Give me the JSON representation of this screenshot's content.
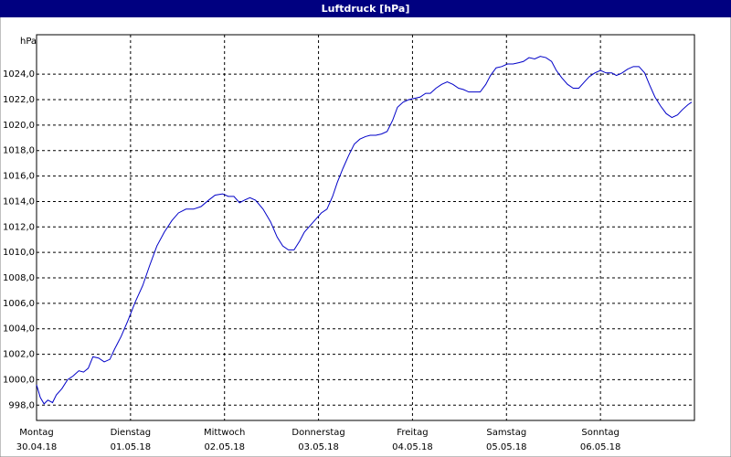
{
  "chart_data": {
    "type": "line",
    "title": "Luftdruck [hPa]",
    "y_unit": "hPa",
    "xlim": [
      0,
      7
    ],
    "xticks": [
      {
        "value": 0,
        "label": "Montag",
        "date": "30.04.18"
      },
      {
        "value": 1,
        "label": "Dienstag",
        "date": "01.05.18"
      },
      {
        "value": 2,
        "label": "Mittwoch",
        "date": "02.05.18"
      },
      {
        "value": 3,
        "label": "Donnerstag",
        "date": "03.05.18"
      },
      {
        "value": 4,
        "label": "Freitag",
        "date": "04.05.18"
      },
      {
        "value": 5,
        "label": "Samstag",
        "date": "05.05.18"
      },
      {
        "value": 6,
        "label": "Sonntag",
        "date": "06.05.18"
      }
    ],
    "ylim": [
      996.8,
      1027.1
    ],
    "yticks": [
      {
        "value": 998,
        "label": "998,0"
      },
      {
        "value": 1000,
        "label": "1000,0"
      },
      {
        "value": 1002,
        "label": "1002,0"
      },
      {
        "value": 1004,
        "label": "1004,0"
      },
      {
        "value": 1006,
        "label": "1006,0"
      },
      {
        "value": 1008,
        "label": "1008,0"
      },
      {
        "value": 1010,
        "label": "1010,0"
      },
      {
        "value": 1012,
        "label": "1012,0"
      },
      {
        "value": 1014,
        "label": "1014,0"
      },
      {
        "value": 1016,
        "label": "1016,0"
      },
      {
        "value": 1018,
        "label": "1018,0"
      },
      {
        "value": 1020,
        "label": "1020,0"
      },
      {
        "value": 1022,
        "label": "1022,0"
      },
      {
        "value": 1024,
        "label": "1024,0"
      }
    ],
    "grid": true,
    "series": [
      {
        "color": "#0000c8",
        "x": [
          0,
          0.04,
          0.08,
          0.12,
          0.17,
          0.21,
          0.27,
          0.33,
          0.39,
          0.45,
          0.5,
          0.55,
          0.6,
          0.66,
          0.72,
          0.78,
          0.83,
          0.9,
          0.97,
          1.05,
          1.13,
          1.2,
          1.28,
          1.36,
          1.44,
          1.51,
          1.59,
          1.67,
          1.75,
          1.83,
          1.9,
          1.98,
          2.04,
          2.1,
          2.16,
          2.21,
          2.27,
          2.33,
          2.41,
          2.49,
          2.56,
          2.62,
          2.68,
          2.74,
          2.8,
          2.85,
          2.91,
          2.97,
          3.03,
          3.09,
          3.15,
          3.2,
          3.26,
          3.32,
          3.38,
          3.44,
          3.5,
          3.55,
          3.61,
          3.67,
          3.73,
          3.79,
          3.84,
          3.9,
          3.96,
          4.02,
          4.08,
          4.14,
          4.19,
          4.25,
          4.31,
          4.37,
          4.43,
          4.49,
          4.54,
          4.6,
          4.66,
          4.72,
          4.78,
          4.83,
          4.89,
          4.95,
          5.01,
          5.07,
          5.13,
          5.18,
          5.24,
          5.3,
          5.36,
          5.42,
          5.48,
          5.53,
          5.59,
          5.65,
          5.71,
          5.77,
          5.83,
          5.88,
          5.94,
          6,
          6.06,
          6.12,
          6.17,
          6.23,
          6.29,
          6.35,
          6.41,
          6.47,
          6.52,
          6.58,
          6.64,
          6.7,
          6.76,
          6.82,
          6.87,
          6.93,
          6.97
        ],
        "values": [
          999.6,
          998.6,
          998.1,
          998.4,
          998.2,
          998.8,
          999.3,
          1000,
          1000.3,
          1000.7,
          1000.6,
          1000.9,
          1001.8,
          1001.7,
          1001.4,
          1001.6,
          1002.4,
          1003.4,
          1004.6,
          1006.1,
          1007.4,
          1008.9,
          1010.5,
          1011.6,
          1012.5,
          1013.1,
          1013.4,
          1013.4,
          1013.6,
          1014.1,
          1014.5,
          1014.6,
          1014.4,
          1014.4,
          1013.9,
          1014.1,
          1014.3,
          1014.1,
          1013.4,
          1012.4,
          1011.2,
          1010.5,
          1010.2,
          1010.2,
          1010.9,
          1011.6,
          1012.1,
          1012.6,
          1013.1,
          1013.4,
          1014.4,
          1015.5,
          1016.6,
          1017.6,
          1018.5,
          1018.9,
          1019.1,
          1019.2,
          1019.2,
          1019.3,
          1019.5,
          1020.4,
          1021.4,
          1021.8,
          1022,
          1022.1,
          1022.2,
          1022.5,
          1022.5,
          1022.9,
          1023.2,
          1023.4,
          1023.2,
          1022.9,
          1022.8,
          1022.6,
          1022.6,
          1022.6,
          1023.2,
          1023.9,
          1024.5,
          1024.6,
          1024.8,
          1024.8,
          1024.9,
          1025,
          1025.3,
          1025.2,
          1025.4,
          1025.3,
          1025,
          1024.3,
          1023.7,
          1023.2,
          1022.9,
          1022.9,
          1023.4,
          1023.8,
          1024.1,
          1024.3,
          1024.1,
          1024.1,
          1023.9,
          1024.1,
          1024.4,
          1024.6,
          1024.6,
          1024.1,
          1023.2,
          1022.2,
          1021.5,
          1020.9,
          1020.6,
          1020.8,
          1021.2,
          1021.6,
          1021.8
        ]
      }
    ]
  }
}
